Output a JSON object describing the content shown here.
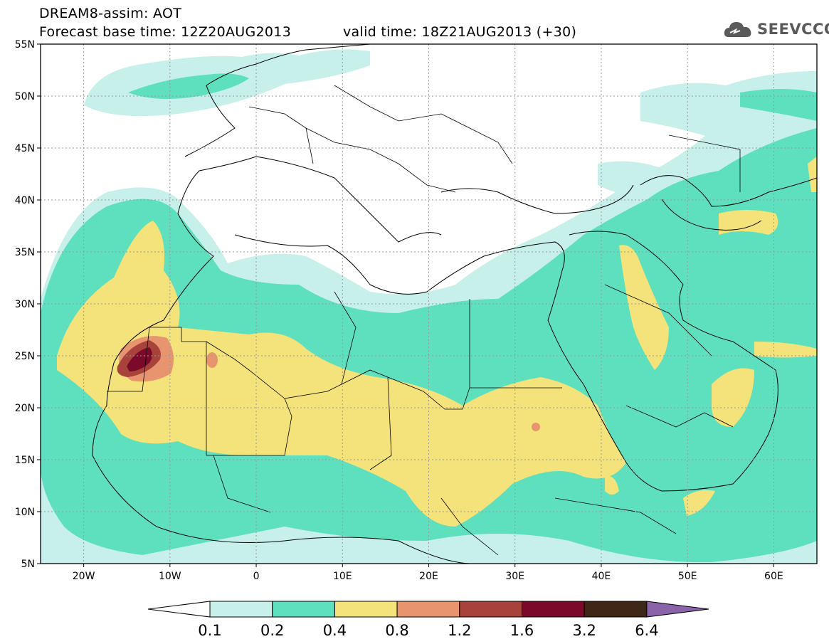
{
  "header": {
    "title": "DREAM8-assim: AOT",
    "base_time": "Forecast base time: 12Z20AUG2013",
    "valid_time": "valid time: 18Z21AUG2013 (+30)"
  },
  "logo": {
    "text": "SEEVCCC",
    "icon": "cloud-icon"
  },
  "map": {
    "lat_labels": [
      "55N",
      "50N",
      "45N",
      "40N",
      "35N",
      "30N",
      "25N",
      "20N",
      "15N",
      "10N",
      "5N"
    ],
    "lon_labels": [
      "20W",
      "10W",
      "0",
      "10E",
      "20E",
      "30E",
      "40E",
      "50E",
      "60E"
    ],
    "extent": {
      "lon_min": -25,
      "lon_max": 65,
      "lat_min": 5,
      "lat_max": 55
    },
    "grid": true
  },
  "colorbar": {
    "labels": [
      "0.1",
      "0.2",
      "0.4",
      "0.8",
      "1.2",
      "1.6",
      "3.2",
      "6.4"
    ],
    "colors": [
      "#ffffff",
      "#c6f0e9",
      "#5ee0be",
      "#f4e27a",
      "#e8946e",
      "#a8433c",
      "#7b0a2a",
      "#3e2716",
      "#8a63a9"
    ]
  },
  "palette": {
    "c1": "#c6f0e9",
    "c2": "#5ee0be",
    "c3": "#f4e27a",
    "c4": "#e8946e",
    "c5": "#a8433c",
    "c6": "#7b0a2a"
  }
}
